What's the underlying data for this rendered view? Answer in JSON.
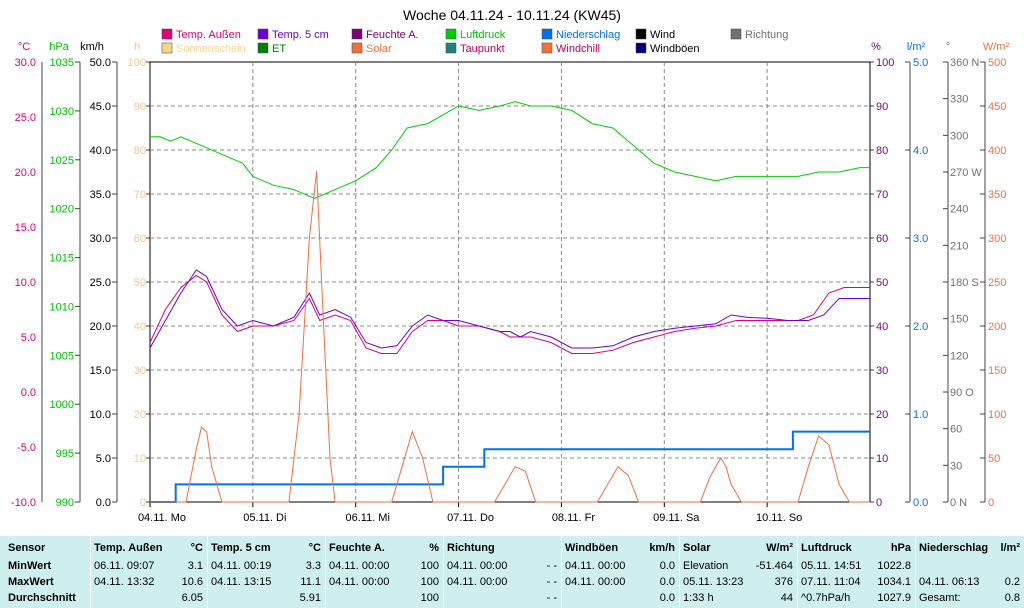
{
  "title": "Woche 04.11.24 - 10.11.24 (KW45)",
  "legend": [
    {
      "label": "Temp. Außen",
      "color": "#e0007a",
      "text_color": "#e0007a"
    },
    {
      "label": "Temp. 5 cm",
      "color": "#6a00e0",
      "text_color": "#6a00e0"
    },
    {
      "label": "Feuchte A.",
      "color": "#7a007a",
      "text_color": "#7a007a"
    },
    {
      "label": "Luftdruck",
      "color": "#00d000",
      "text_color": "#00c000"
    },
    {
      "label": "Niederschlag",
      "color": "#0070f0",
      "text_color": "#0070f0"
    },
    {
      "label": "Wind",
      "color": "#000000",
      "text_color": "#000000"
    },
    {
      "label": "Richtung",
      "color": "#707070",
      "text_color": "#707070"
    },
    {
      "label": "Sonnenschein",
      "color": "#f7d68a",
      "text_color": "#f7d68a"
    },
    {
      "label": "ET",
      "color": "#008000",
      "text_color": "#008000"
    },
    {
      "label": "Solar",
      "color": "#f07040",
      "text_color": "#f07040"
    },
    {
      "label": "Taupunkt",
      "color": "#208080",
      "text_color": "#c00060"
    },
    {
      "label": "Windchill",
      "color": "#f07040",
      "text_color": "#c00060"
    },
    {
      "label": "Windböen",
      "color": "#000080",
      "text_color": "#000000"
    }
  ],
  "axes": {
    "celsius": {
      "unit": "°C",
      "ticks": [
        "30.0",
        "25.0",
        "20.0",
        "15.0",
        "10.0",
        "5.0",
        "0.0",
        "-5.0",
        "-10.0"
      ],
      "color": "#e0007a"
    },
    "hpa": {
      "unit": "hPa",
      "ticks": [
        "1035",
        "1030",
        "1025",
        "1020",
        "1015",
        "1010",
        "1005",
        "1000",
        "995",
        "990"
      ],
      "color": "#00c000"
    },
    "kmh": {
      "unit": "km/h",
      "ticks": [
        "50.0",
        "45.0",
        "40.0",
        "35.0",
        "30.0",
        "25.0",
        "20.0",
        "15.0",
        "10.0",
        "5.0",
        "0.0"
      ],
      "color": "#000000"
    },
    "h": {
      "unit": "h",
      "ticks": [
        "100",
        "90",
        "80",
        "70",
        "60",
        "50",
        "40",
        "30",
        "20",
        "10",
        "0"
      ],
      "color": "#f7c68a"
    },
    "percent": {
      "unit": "%",
      "ticks": [
        "100",
        "90",
        "80",
        "70",
        "60",
        "50",
        "40",
        "30",
        "20",
        "10",
        "0"
      ],
      "color": "#7a007a"
    },
    "mm": {
      "unit": "l/m²",
      "ticks": [
        "5.0",
        "4.0",
        "3.0",
        "2.0",
        "1.0",
        "0.0"
      ],
      "color": "#0070f0"
    },
    "deg": {
      "unit": "°",
      "ticks": [
        "360 N",
        "330",
        "300",
        "270 W",
        "240",
        "210",
        "180 S",
        "150",
        "120",
        "90 O",
        "60",
        "30",
        "0 N"
      ],
      "color": "#707070"
    },
    "wm2": {
      "unit": "W/m²",
      "ticks": [
        "500",
        "450",
        "400",
        "350",
        "300",
        "250",
        "200",
        "150",
        "100",
        "50",
        "0"
      ],
      "color": "#f07040"
    },
    "days": [
      "04.11. Mo",
      "05.11. Di",
      "06.11. Mi",
      "07.11. Do",
      "08.11. Fr",
      "09.11. Sa",
      "10.11. So"
    ]
  },
  "chart_data": {
    "type": "line",
    "title": "Woche 04.11.24 - 10.11.24 (KW45)",
    "x_range": [
      0,
      7
    ],
    "x_unit": "days since 04.11.24 00:00",
    "series": [
      {
        "name": "Luftdruck",
        "axis": "hPa",
        "color": "#00d000",
        "points": [
          [
            0,
            1031.5
          ],
          [
            0.1,
            1031.5
          ],
          [
            0.2,
            1031
          ],
          [
            0.3,
            1031.5
          ],
          [
            0.4,
            1031
          ],
          [
            0.5,
            1030.5
          ],
          [
            0.7,
            1029.5
          ],
          [
            0.9,
            1028.5
          ],
          [
            1.0,
            1027
          ],
          [
            1.2,
            1026
          ],
          [
            1.4,
            1025.5
          ],
          [
            1.6,
            1024.5
          ],
          [
            1.8,
            1025.5
          ],
          [
            2.0,
            1026.5
          ],
          [
            2.2,
            1028
          ],
          [
            2.35,
            1030
          ],
          [
            2.5,
            1032.5
          ],
          [
            2.7,
            1033
          ],
          [
            2.85,
            1034
          ],
          [
            3.0,
            1035
          ],
          [
            3.2,
            1034.5
          ],
          [
            3.4,
            1035
          ],
          [
            3.55,
            1035.5
          ],
          [
            3.7,
            1035
          ],
          [
            3.9,
            1035
          ],
          [
            4.1,
            1034.5
          ],
          [
            4.3,
            1033
          ],
          [
            4.5,
            1032.5
          ],
          [
            4.7,
            1030.5
          ],
          [
            4.9,
            1028.5
          ],
          [
            5.1,
            1027.5
          ],
          [
            5.3,
            1027
          ],
          [
            5.5,
            1026.5
          ],
          [
            5.7,
            1027
          ],
          [
            5.9,
            1027
          ],
          [
            6.1,
            1027
          ],
          [
            6.3,
            1027
          ],
          [
            6.5,
            1027.5
          ],
          [
            6.7,
            1027.5
          ],
          [
            6.9,
            1028
          ],
          [
            7.0,
            1028
          ]
        ]
      },
      {
        "name": "Temp. Außen",
        "axis": "°C",
        "color": "#e0007a",
        "points": [
          [
            0,
            4.5
          ],
          [
            0.15,
            7.5
          ],
          [
            0.3,
            9.5
          ],
          [
            0.45,
            10.6
          ],
          [
            0.55,
            10
          ],
          [
            0.7,
            7
          ],
          [
            0.85,
            5.5
          ],
          [
            1.0,
            6
          ],
          [
            1.2,
            6
          ],
          [
            1.4,
            6.5
          ],
          [
            1.55,
            8.5
          ],
          [
            1.65,
            6.5
          ],
          [
            1.8,
            7
          ],
          [
            1.95,
            6.5
          ],
          [
            2.1,
            4
          ],
          [
            2.25,
            3.5
          ],
          [
            2.4,
            3.5
          ],
          [
            2.55,
            5.5
          ],
          [
            2.7,
            6.5
          ],
          [
            2.85,
            6.5
          ],
          [
            3.0,
            6
          ],
          [
            3.2,
            6
          ],
          [
            3.4,
            5.5
          ],
          [
            3.5,
            5
          ],
          [
            3.7,
            5
          ],
          [
            3.9,
            4.5
          ],
          [
            4.1,
            3.5
          ],
          [
            4.3,
            3.5
          ],
          [
            4.5,
            3.8
          ],
          [
            4.7,
            4.5
          ],
          [
            4.9,
            5
          ],
          [
            5.1,
            5.5
          ],
          [
            5.3,
            5.8
          ],
          [
            5.5,
            6
          ],
          [
            5.7,
            6.5
          ],
          [
            5.9,
            6.5
          ],
          [
            6.1,
            6.5
          ],
          [
            6.3,
            6.5
          ],
          [
            6.45,
            7
          ],
          [
            6.6,
            9
          ],
          [
            6.75,
            9.5
          ],
          [
            7.0,
            9.5
          ]
        ]
      },
      {
        "name": "Temp. 5 cm",
        "axis": "°C",
        "color": "#6a00e0",
        "points": [
          [
            0,
            4
          ],
          [
            0.15,
            6.5
          ],
          [
            0.3,
            9
          ],
          [
            0.45,
            11.1
          ],
          [
            0.55,
            10.5
          ],
          [
            0.7,
            7.5
          ],
          [
            0.85,
            6
          ],
          [
            1.0,
            6.5
          ],
          [
            1.2,
            6
          ],
          [
            1.4,
            6.8
          ],
          [
            1.55,
            9
          ],
          [
            1.65,
            7
          ],
          [
            1.8,
            7.5
          ],
          [
            1.95,
            6.8
          ],
          [
            2.1,
            4.5
          ],
          [
            2.25,
            4
          ],
          [
            2.4,
            4.2
          ],
          [
            2.55,
            6
          ],
          [
            2.7,
            7
          ],
          [
            2.85,
            6.5
          ],
          [
            3.0,
            6.5
          ],
          [
            3.2,
            6
          ],
          [
            3.4,
            5.5
          ],
          [
            3.5,
            5.5
          ],
          [
            3.6,
            5
          ],
          [
            3.7,
            5.5
          ],
          [
            3.9,
            5
          ],
          [
            4.1,
            4
          ],
          [
            4.3,
            4
          ],
          [
            4.5,
            4.2
          ],
          [
            4.7,
            5
          ],
          [
            4.9,
            5.5
          ],
          [
            5.1,
            5.8
          ],
          [
            5.3,
            6
          ],
          [
            5.5,
            6.2
          ],
          [
            5.65,
            7
          ],
          [
            5.8,
            6.8
          ],
          [
            6.0,
            6.7
          ],
          [
            6.2,
            6.5
          ],
          [
            6.4,
            6.5
          ],
          [
            6.55,
            7
          ],
          [
            6.7,
            8.5
          ],
          [
            6.85,
            8.5
          ],
          [
            7.0,
            8.5
          ]
        ]
      },
      {
        "name": "Niederschlag",
        "axis": "l/m²",
        "color": "#0070f0",
        "points": [
          [
            0,
            0
          ],
          [
            0.25,
            0
          ],
          [
            0.25,
            0.2
          ],
          [
            2.85,
            0.2
          ],
          [
            2.85,
            0.4
          ],
          [
            3.25,
            0.4
          ],
          [
            3.25,
            0.6
          ],
          [
            6.25,
            0.6
          ],
          [
            6.25,
            0.8
          ],
          [
            7,
            0.8
          ]
        ]
      },
      {
        "name": "Solar",
        "axis": "W/m²",
        "color": "#f07040",
        "points": [
          [
            0,
            0
          ],
          [
            0.35,
            0
          ],
          [
            0.45,
            60
          ],
          [
            0.5,
            85
          ],
          [
            0.55,
            80
          ],
          [
            0.6,
            40
          ],
          [
            0.7,
            0
          ],
          [
            1.35,
            0
          ],
          [
            1.45,
            100
          ],
          [
            1.55,
            300
          ],
          [
            1.62,
            376
          ],
          [
            1.68,
            220
          ],
          [
            1.75,
            50
          ],
          [
            1.8,
            0
          ],
          [
            2.35,
            0
          ],
          [
            2.45,
            40
          ],
          [
            2.55,
            80
          ],
          [
            2.65,
            50
          ],
          [
            2.75,
            0
          ],
          [
            3.35,
            0
          ],
          [
            3.45,
            20
          ],
          [
            3.55,
            40
          ],
          [
            3.65,
            35
          ],
          [
            3.75,
            0
          ],
          [
            4.35,
            0
          ],
          [
            4.45,
            20
          ],
          [
            4.55,
            40
          ],
          [
            4.65,
            30
          ],
          [
            4.75,
            0
          ],
          [
            5.35,
            0
          ],
          [
            5.45,
            30
          ],
          [
            5.55,
            50
          ],
          [
            5.6,
            40
          ],
          [
            5.65,
            20
          ],
          [
            5.75,
            0
          ],
          [
            6.3,
            0
          ],
          [
            6.4,
            40
          ],
          [
            6.5,
            75
          ],
          [
            6.6,
            65
          ],
          [
            6.7,
            20
          ],
          [
            6.8,
            0
          ],
          [
            7.0,
            0
          ]
        ]
      }
    ]
  },
  "stats": {
    "row_labels": [
      "Sensor",
      "MinWert",
      "MaxWert",
      "Durchschnitt"
    ],
    "columns": [
      {
        "title": "Temp. Außen",
        "unit": "°C",
        "rows": [
          [
            "06.11.  09:07",
            "3.1"
          ],
          [
            "04.11.  13:32",
            "10.6"
          ],
          [
            "",
            "6.05"
          ]
        ]
      },
      {
        "title": "Temp. 5 cm",
        "unit": "°C",
        "rows": [
          [
            "04.11.  00:19",
            "3.3"
          ],
          [
            "04.11.  13:15",
            "11.1"
          ],
          [
            "",
            "5.91"
          ]
        ]
      },
      {
        "title": "Feuchte A.",
        "unit": "%",
        "rows": [
          [
            "04.11.  00:00",
            "100"
          ],
          [
            "04.11.  00:00",
            "100"
          ],
          [
            "",
            "100"
          ]
        ]
      },
      {
        "title": "Richtung",
        "unit": "",
        "rows": [
          [
            "04.11.  00:00",
            "- -"
          ],
          [
            "04.11.  00:00",
            "- -"
          ],
          [
            "",
            "- -"
          ]
        ]
      },
      {
        "title": "Windböen",
        "unit": "km/h",
        "rows": [
          [
            "04.11.  00:00",
            "0.0"
          ],
          [
            "04.11.  00:00",
            "0.0"
          ],
          [
            "",
            "0.0"
          ]
        ]
      },
      {
        "title": "Solar",
        "unit": "W/m²",
        "rows": [
          [
            "Elevation",
            "-51.464"
          ],
          [
            "05.11.  13:23",
            "376"
          ],
          [
            "1:33 h",
            "44"
          ]
        ]
      },
      {
        "title": "Luftdruck",
        "unit": "hPa",
        "rows": [
          [
            "05.11.  14:51",
            "1022.8"
          ],
          [
            "07.11.  11:04",
            "1034.1"
          ],
          [
            "^0.7hPa/h",
            "1027.9"
          ]
        ]
      },
      {
        "title": "Niederschlag",
        "unit": "l/m²",
        "rows": [
          [
            "",
            ""
          ],
          [
            "04.11.  06:13",
            "0.2"
          ],
          [
            "Gesamt:",
            "0.8"
          ]
        ]
      }
    ]
  }
}
